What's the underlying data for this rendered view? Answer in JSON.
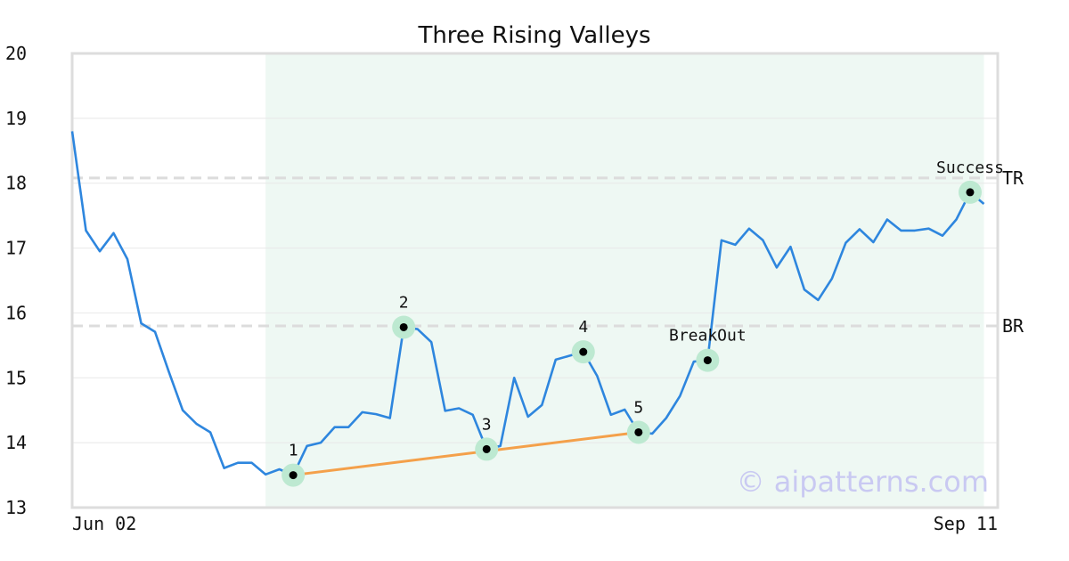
{
  "chart_data": {
    "type": "line",
    "title": "Three Rising Valleys",
    "xlabel": "",
    "ylabel": "",
    "x_tick_labels": [
      "Jun 02",
      "Sep 11"
    ],
    "x_range_index": [
      0,
      67
    ],
    "y_ticks": [
      "13",
      "14",
      "15",
      "16",
      "17",
      "18",
      "19",
      "20"
    ],
    "ylim": [
      13,
      20
    ],
    "grid": "horizontal",
    "highlight_range_index": [
      14,
      66
    ],
    "series": [
      {
        "color": "#2e86de",
        "values": [
          18.8,
          17.27,
          16.95,
          17.23,
          16.83,
          15.84,
          15.71,
          15.09,
          14.5,
          14.29,
          14.16,
          13.61,
          13.69,
          13.69,
          13.51,
          13.59,
          13.5,
          13.95,
          14.0,
          14.24,
          14.24,
          14.47,
          14.44,
          14.38,
          15.78,
          15.75,
          15.55,
          14.49,
          14.53,
          14.43,
          13.9,
          13.95,
          15.0,
          14.4,
          14.58,
          15.28,
          15.34,
          15.4,
          15.03,
          14.43,
          14.51,
          14.16,
          14.14,
          14.38,
          14.72,
          15.25,
          15.27,
          17.12,
          17.05,
          17.3,
          17.12,
          16.7,
          17.02,
          16.36,
          16.2,
          16.53,
          17.08,
          17.29,
          17.09,
          17.44,
          17.27,
          17.27,
          17.3,
          17.19,
          17.44,
          17.86,
          17.68
        ]
      }
    ],
    "reference_lines": [
      {
        "label": "TR",
        "y": 18.08,
        "color": "#dcdcdc",
        "style": "dashed"
      },
      {
        "label": "BR",
        "y": 15.8,
        "color": "#dcdcdc",
        "style": "dashed"
      }
    ],
    "trendline": {
      "color": "#f4a04a",
      "from": {
        "index": 16,
        "y": 13.5
      },
      "to": {
        "index": 41,
        "y": 14.16
      }
    },
    "markers": [
      {
        "label": "1",
        "index": 16,
        "y": 13.5,
        "label_pos": "above"
      },
      {
        "label": "2",
        "index": 24,
        "y": 15.78,
        "label_pos": "above"
      },
      {
        "label": "3",
        "index": 30,
        "y": 13.9,
        "label_pos": "above"
      },
      {
        "label": "4",
        "index": 37,
        "y": 15.4,
        "label_pos": "above"
      },
      {
        "label": "5",
        "index": 41,
        "y": 14.16,
        "label_pos": "above"
      },
      {
        "label": "BreakOut",
        "index": 46,
        "y": 15.27,
        "label_pos": "above"
      },
      {
        "label": "Success",
        "index": 65,
        "y": 17.86,
        "label_pos": "above"
      }
    ],
    "watermark": "© aipatterns.com",
    "colors": {
      "line": "#2e86de",
      "highlight": "#eef8f3",
      "marker_ring": "#bde9d1",
      "marker_dot": "#000000",
      "frame": "#dddddd",
      "grid": "#e8e8e8"
    }
  }
}
